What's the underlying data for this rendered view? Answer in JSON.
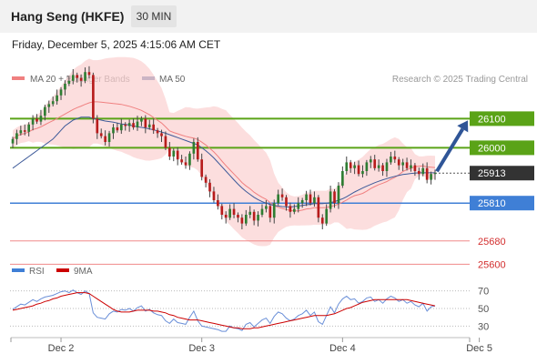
{
  "header": {
    "title": "Hang Seng (HKFE)",
    "timeframe": "30 MIN"
  },
  "datetime": "Friday, December 5, 2025 4:15:06 AM CET",
  "legend": {
    "ma20_bb": "MA 20 + Bollinger Bands",
    "ma50": "MA 50",
    "credit": "Research © 2025 Trading Central",
    "rsi": "RSI",
    "rsi_ma": "9MA"
  },
  "colors": {
    "candle_up": "#2e7d32",
    "candle_down": "#b71c1c",
    "bollinger_fill": "#fbd3d3",
    "ma20": "#f08080",
    "ma50": "#3d5a99",
    "resistance": "#5aa317",
    "support": "#3f7fd6",
    "target": "#f08a8a",
    "current_price": "#333333",
    "arrow": "#2f5597"
  },
  "chart_data": [
    {
      "type": "candlestick",
      "title": "Hang Seng (HKFE)",
      "interval": "30 MIN",
      "x_ticks": [
        "Dec 2",
        "Dec 3",
        "Dec 4",
        "Dec 5"
      ],
      "ylim": [
        25570,
        26320
      ],
      "current_price": 25913,
      "levels": [
        {
          "value": 26100,
          "label": "26100",
          "kind": "resistance"
        },
        {
          "value": 26000,
          "label": "26000",
          "kind": "resistance"
        },
        {
          "value": 25913,
          "label": "25913",
          "kind": "current"
        },
        {
          "value": 25810,
          "label": "25810",
          "kind": "support"
        },
        {
          "value": 25680,
          "label": "25680",
          "kind": "target"
        },
        {
          "value": 25600,
          "label": "25600",
          "kind": "target"
        }
      ],
      "closes": [
        26030,
        26050,
        26060,
        26055,
        26080,
        26100,
        26090,
        26110,
        26140,
        26150,
        26160,
        26180,
        26200,
        26220,
        26230,
        26250,
        26240,
        26230,
        26260,
        26250,
        26100,
        26050,
        26040,
        26020,
        26050,
        26070,
        26060,
        26080,
        26075,
        26085,
        26070,
        26090,
        26100,
        26070,
        26080,
        26060,
        26050,
        26040,
        26000,
        25970,
        25990,
        25960,
        25950,
        25940,
        25980,
        26020,
        25960,
        25900,
        25880,
        25850,
        25820,
        25800,
        25770,
        25760,
        25790,
        25770,
        25760,
        25740,
        25770,
        25780,
        25750,
        25770,
        25790,
        25800,
        25760,
        25810,
        25840,
        25830,
        25800,
        25780,
        25790,
        25810,
        25820,
        25840,
        25810,
        25830,
        25760,
        25740,
        25790,
        25850,
        25810,
        25870,
        25920,
        25950,
        25930,
        25940,
        25910,
        25920,
        25950,
        25960,
        25930,
        25940,
        25920,
        25950,
        25970,
        25960,
        25940,
        25950,
        25930,
        25940,
        25920,
        25910,
        25930,
        25890,
        25910,
        25913
      ],
      "ma50": [
        25930,
        25940,
        25950,
        25960,
        25970,
        25980,
        25990,
        26000,
        26010,
        26020,
        26030,
        26045,
        26060,
        26075,
        26085,
        26095,
        26100,
        26105,
        26105,
        26105,
        26100,
        26098,
        26095,
        26092,
        26090,
        26088,
        26085,
        26082,
        26080,
        26078,
        26075,
        26072,
        26070,
        26068,
        26065,
        26062,
        26058,
        26054,
        26050,
        26045,
        26040,
        26035,
        26030,
        26025,
        26020,
        26015,
        26010,
        26000,
        25990,
        25978,
        25965,
        25950,
        25935,
        25920,
        25905,
        25890,
        25875,
        25862,
        25850,
        25840,
        25830,
        25822,
        25815,
        25810,
        25805,
        25802,
        25800,
        25798,
        25797,
        25797,
        25798,
        25800,
        25802,
        25804,
        25806,
        25808,
        25808,
        25808,
        25810,
        25812,
        25815,
        25820,
        25825,
        25832,
        25840,
        25848,
        25855,
        25862,
        25868,
        25874,
        25880,
        25885,
        25890,
        25894,
        25898,
        25902,
        25905,
        25908,
        25910,
        25912,
        25913,
        25914,
        25914,
        25914,
        25914,
        25914
      ]
    },
    {
      "type": "line",
      "title": "RSI",
      "ylim": [
        20,
        80
      ],
      "y_ticks": [
        70,
        50,
        30
      ],
      "series": [
        {
          "name": "RSI",
          "values": [
            49,
            52,
            55,
            54,
            57,
            60,
            58,
            61,
            63,
            64,
            65,
            67,
            69,
            70,
            68,
            71,
            68,
            66,
            70,
            67,
            45,
            40,
            39,
            38,
            44,
            47,
            46,
            49,
            48,
            50,
            47,
            51,
            53,
            47,
            49,
            45,
            43,
            42,
            36,
            33,
            38,
            34,
            33,
            32,
            40,
            47,
            36,
            30,
            29,
            28,
            27,
            26,
            24,
            24,
            30,
            28,
            27,
            25,
            32,
            34,
            29,
            33,
            37,
            39,
            33,
            41,
            46,
            44,
            39,
            36,
            38,
            42,
            44,
            48,
            42,
            46,
            35,
            32,
            42,
            52,
            45,
            55,
            61,
            64,
            60,
            61,
            56,
            58,
            62,
            63,
            58,
            60,
            56,
            61,
            64,
            62,
            58,
            60,
            56,
            58,
            54,
            52,
            56,
            47,
            52,
            53
          ]
        },
        {
          "name": "9MA",
          "values": [
            48,
            49,
            50,
            51,
            52,
            53,
            55,
            56,
            58,
            59,
            61,
            62,
            64,
            65,
            66,
            67,
            68,
            68,
            68,
            67,
            64,
            61,
            58,
            55,
            52,
            49,
            47,
            46,
            46,
            46,
            47,
            48,
            48,
            48,
            48,
            47,
            47,
            46,
            45,
            43,
            42,
            40,
            39,
            38,
            37,
            37,
            37,
            36,
            35,
            34,
            33,
            32,
            31,
            30,
            29,
            28,
            28,
            27,
            27,
            27,
            28,
            28,
            29,
            30,
            31,
            32,
            33,
            34,
            35,
            36,
            37,
            38,
            39,
            40,
            41,
            42,
            42,
            42,
            42,
            43,
            44,
            46,
            48,
            50,
            51,
            53,
            55,
            57,
            58,
            59,
            60,
            60,
            60,
            60,
            60,
            60,
            60,
            60,
            60,
            59,
            58,
            57,
            56,
            55,
            54,
            53
          ]
        }
      ]
    }
  ]
}
